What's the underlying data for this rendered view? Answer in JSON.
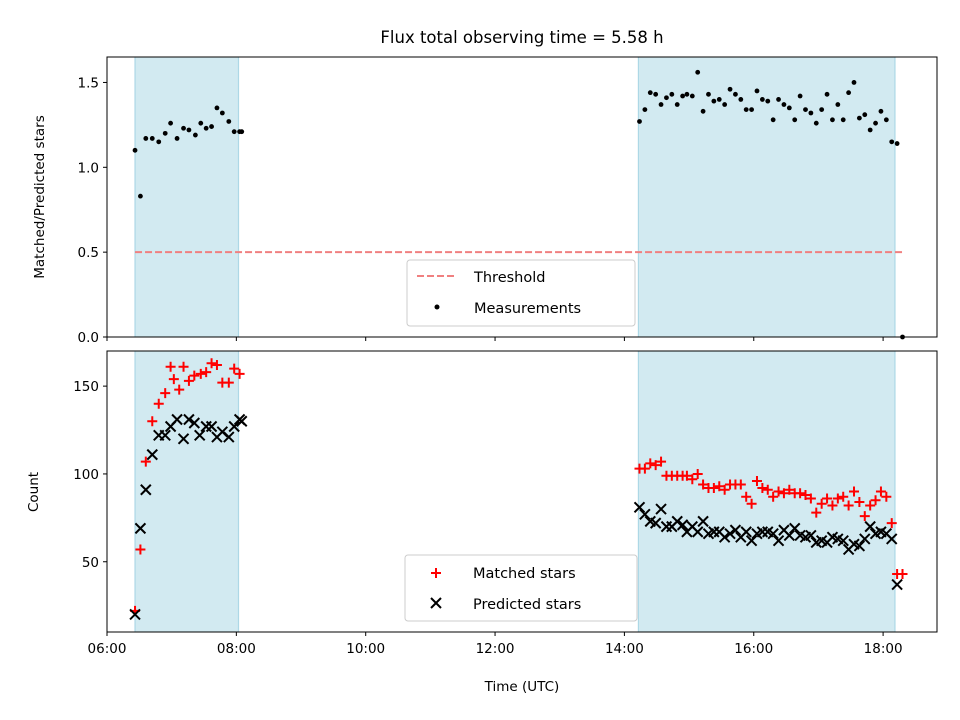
{
  "chart_data": [
    {
      "type": "scatter",
      "title": "Flux total observing time = 5.58 h",
      "xlabel": "",
      "ylabel": "Matched/Predicted stars",
      "x_unit": "time of day (UTC)",
      "xlim": [
        "06:00",
        "18:50"
      ],
      "ylim": [
        0,
        1.65
      ],
      "y_ticks": [
        "0.0",
        "0.5",
        "1.0",
        "1.5"
      ],
      "x_tick_values": [
        "06:00",
        "08:00",
        "10:00",
        "12:00",
        "14:00",
        "16:00",
        "18:00"
      ],
      "shaded_intervals": [
        [
          "06:26",
          "08:02"
        ],
        [
          "14:13",
          "18:11"
        ]
      ],
      "shade_color": "#add8e6",
      "legend_position": "lower center",
      "legend": [
        "Threshold",
        "Measurements"
      ],
      "threshold": {
        "name": "Threshold",
        "value": 0.5,
        "x_range": [
          "06:26",
          "18:18"
        ],
        "color": "#f08080",
        "style": "dashed"
      },
      "series": [
        {
          "name": "Measurements",
          "marker": "dot",
          "color": "#000000",
          "points": [
            [
              "06:26",
              1.1
            ],
            [
              "06:31",
              0.83
            ],
            [
              "06:36",
              1.17
            ],
            [
              "06:42",
              1.17
            ],
            [
              "06:48",
              1.15
            ],
            [
              "06:54",
              1.2
            ],
            [
              "06:59",
              1.26
            ],
            [
              "07:05",
              1.17
            ],
            [
              "07:11",
              1.23
            ],
            [
              "07:16",
              1.22
            ],
            [
              "07:22",
              1.19
            ],
            [
              "07:27",
              1.26
            ],
            [
              "07:32",
              1.23
            ],
            [
              "07:37",
              1.24
            ],
            [
              "07:42",
              1.35
            ],
            [
              "07:47",
              1.32
            ],
            [
              "07:53",
              1.27
            ],
            [
              "07:58",
              1.21
            ],
            [
              "08:03",
              1.21
            ],
            [
              "08:05",
              1.21
            ],
            [
              "14:14",
              1.27
            ],
            [
              "14:19",
              1.34
            ],
            [
              "14:24",
              1.44
            ],
            [
              "14:29",
              1.43
            ],
            [
              "14:34",
              1.37
            ],
            [
              "14:39",
              1.41
            ],
            [
              "14:44",
              1.43
            ],
            [
              "14:49",
              1.37
            ],
            [
              "14:54",
              1.42
            ],
            [
              "14:58",
              1.43
            ],
            [
              "15:03",
              1.42
            ],
            [
              "15:08",
              1.56
            ],
            [
              "15:13",
              1.33
            ],
            [
              "15:18",
              1.43
            ],
            [
              "15:23",
              1.39
            ],
            [
              "15:28",
              1.4
            ],
            [
              "15:33",
              1.37
            ],
            [
              "15:38",
              1.46
            ],
            [
              "15:43",
              1.43
            ],
            [
              "15:48",
              1.4
            ],
            [
              "15:53",
              1.34
            ],
            [
              "15:58",
              1.34
            ],
            [
              "16:03",
              1.45
            ],
            [
              "16:08",
              1.4
            ],
            [
              "16:13",
              1.39
            ],
            [
              "16:18",
              1.28
            ],
            [
              "16:23",
              1.4
            ],
            [
              "16:28",
              1.37
            ],
            [
              "16:33",
              1.35
            ],
            [
              "16:38",
              1.28
            ],
            [
              "16:43",
              1.42
            ],
            [
              "16:48",
              1.34
            ],
            [
              "16:53",
              1.32
            ],
            [
              "16:58",
              1.26
            ],
            [
              "17:03",
              1.34
            ],
            [
              "17:08",
              1.43
            ],
            [
              "17:13",
              1.28
            ],
            [
              "17:18",
              1.37
            ],
            [
              "17:23",
              1.28
            ],
            [
              "17:28",
              1.44
            ],
            [
              "17:33",
              1.5
            ],
            [
              "17:38",
              1.29
            ],
            [
              "17:43",
              1.31
            ],
            [
              "17:48",
              1.22
            ],
            [
              "17:53",
              1.26
            ],
            [
              "17:58",
              1.33
            ],
            [
              "18:03",
              1.28
            ],
            [
              "18:08",
              1.15
            ],
            [
              "18:13",
              1.14
            ],
            [
              "18:18",
              0.0
            ]
          ]
        }
      ]
    },
    {
      "type": "scatter",
      "title": "",
      "xlabel": "Time (UTC)",
      "ylabel": "Count",
      "x_unit": "time of day (UTC)",
      "xlim": [
        "06:00",
        "18:50"
      ],
      "ylim": [
        10,
        170
      ],
      "y_ticks": [
        "50",
        "100",
        "150"
      ],
      "x_ticks": [
        "06:00",
        "08:00",
        "10:00",
        "12:00",
        "14:00",
        "16:00",
        "18:00"
      ],
      "shaded_intervals": [
        [
          "06:26",
          "08:02"
        ],
        [
          "14:13",
          "18:11"
        ]
      ],
      "shade_color": "#add8e6",
      "legend_position": "lower center",
      "legend": [
        "Matched stars",
        "Predicted stars"
      ],
      "series": [
        {
          "name": "Matched stars",
          "marker": "plus",
          "color": "#ff0000",
          "points": [
            [
              "06:26",
              22
            ],
            [
              "06:31",
              57
            ],
            [
              "06:36",
              107
            ],
            [
              "06:42",
              130
            ],
            [
              "06:48",
              140
            ],
            [
              "06:54",
              146
            ],
            [
              "06:59",
              161
            ],
            [
              "07:02",
              154
            ],
            [
              "07:07",
              148
            ],
            [
              "07:11",
              161
            ],
            [
              "07:16",
              153
            ],
            [
              "07:21",
              156
            ],
            [
              "07:27",
              157
            ],
            [
              "07:32",
              158
            ],
            [
              "07:37",
              163
            ],
            [
              "07:42",
              162
            ],
            [
              "07:47",
              152
            ],
            [
              "07:53",
              152
            ],
            [
              "07:58",
              160
            ],
            [
              "08:03",
              157
            ],
            [
              "14:14",
              103
            ],
            [
              "14:19",
              103
            ],
            [
              "14:24",
              106
            ],
            [
              "14:29",
              105
            ],
            [
              "14:34",
              107
            ],
            [
              "14:39",
              99
            ],
            [
              "14:44",
              99
            ],
            [
              "14:49",
              99
            ],
            [
              "14:54",
              99
            ],
            [
              "14:58",
              99
            ],
            [
              "15:03",
              97
            ],
            [
              "15:08",
              100
            ],
            [
              "15:13",
              94
            ],
            [
              "15:18",
              92
            ],
            [
              "15:23",
              92
            ],
            [
              "15:28",
              93
            ],
            [
              "15:33",
              91
            ],
            [
              "15:38",
              94
            ],
            [
              "15:43",
              94
            ],
            [
              "15:48",
              94
            ],
            [
              "15:53",
              87
            ],
            [
              "15:58",
              83
            ],
            [
              "16:03",
              96
            ],
            [
              "16:08",
              92
            ],
            [
              "16:13",
              91
            ],
            [
              "16:18",
              87
            ],
            [
              "16:23",
              90
            ],
            [
              "16:28",
              89
            ],
            [
              "16:33",
              91
            ],
            [
              "16:38",
              89
            ],
            [
              "16:43",
              89
            ],
            [
              "16:48",
              88
            ],
            [
              "16:53",
              86
            ],
            [
              "16:58",
              78
            ],
            [
              "17:03",
              83
            ],
            [
              "17:08",
              86
            ],
            [
              "17:13",
              82
            ],
            [
              "17:18",
              86
            ],
            [
              "17:23",
              87
            ],
            [
              "17:28",
              82
            ],
            [
              "17:33",
              90
            ],
            [
              "17:38",
              84
            ],
            [
              "17:43",
              76
            ],
            [
              "17:48",
              82
            ],
            [
              "17:53",
              85
            ],
            [
              "17:58",
              90
            ],
            [
              "18:03",
              87
            ],
            [
              "18:08",
              72
            ],
            [
              "18:13",
              43
            ],
            [
              "18:18",
              43
            ]
          ]
        },
        {
          "name": "Predicted stars",
          "marker": "x",
          "color": "#000000",
          "points": [
            [
              "06:26",
              20
            ],
            [
              "06:31",
              69
            ],
            [
              "06:36",
              91
            ],
            [
              "06:42",
              111
            ],
            [
              "06:48",
              122
            ],
            [
              "06:54",
              122
            ],
            [
              "06:59",
              127
            ],
            [
              "07:05",
              131
            ],
            [
              "07:11",
              120
            ],
            [
              "07:16",
              131
            ],
            [
              "07:21",
              129
            ],
            [
              "07:26",
              122
            ],
            [
              "07:32",
              127
            ],
            [
              "07:37",
              127
            ],
            [
              "07:42",
              121
            ],
            [
              "07:47",
              124
            ],
            [
              "07:53",
              121
            ],
            [
              "07:58",
              127
            ],
            [
              "08:03",
              131
            ],
            [
              "08:05",
              130
            ],
            [
              "14:14",
              81
            ],
            [
              "14:19",
              77
            ],
            [
              "14:24",
              73
            ],
            [
              "14:29",
              72
            ],
            [
              "14:34",
              80
            ],
            [
              "14:39",
              70
            ],
            [
              "14:44",
              70
            ],
            [
              "14:49",
              73
            ],
            [
              "14:54",
              71
            ],
            [
              "14:58",
              67
            ],
            [
              "15:03",
              70
            ],
            [
              "15:08",
              67
            ],
            [
              "15:13",
              73
            ],
            [
              "15:18",
              66
            ],
            [
              "15:23",
              67
            ],
            [
              "15:28",
              67
            ],
            [
              "15:33",
              64
            ],
            [
              "15:38",
              66
            ],
            [
              "15:43",
              68
            ],
            [
              "15:48",
              64
            ],
            [
              "15:53",
              67
            ],
            [
              "15:58",
              62
            ],
            [
              "16:03",
              66
            ],
            [
              "16:08",
              67
            ],
            [
              "16:13",
              67
            ],
            [
              "16:18",
              66
            ],
            [
              "16:23",
              62
            ],
            [
              "16:28",
              68
            ],
            [
              "16:33",
              65
            ],
            [
              "16:38",
              69
            ],
            [
              "16:43",
              65
            ],
            [
              "16:48",
              64
            ],
            [
              "16:53",
              65
            ],
            [
              "16:58",
              61
            ],
            [
              "17:03",
              62
            ],
            [
              "17:08",
              61
            ],
            [
              "17:13",
              64
            ],
            [
              "17:18",
              63
            ],
            [
              "17:23",
              62
            ],
            [
              "17:28",
              57
            ],
            [
              "17:33",
              60
            ],
            [
              "17:38",
              59
            ],
            [
              "17:43",
              63
            ],
            [
              "17:48",
              70
            ],
            [
              "17:53",
              66
            ],
            [
              "17:58",
              67
            ],
            [
              "18:03",
              66
            ],
            [
              "18:08",
              63
            ],
            [
              "18:13",
              37
            ]
          ]
        }
      ]
    }
  ]
}
